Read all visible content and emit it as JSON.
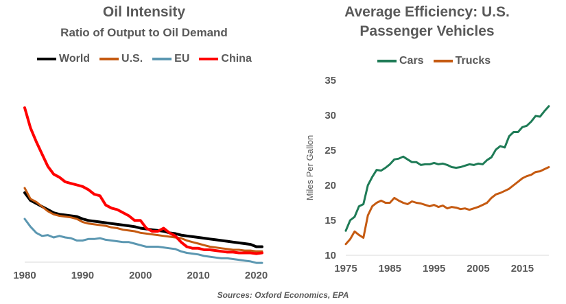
{
  "source": "Sources: Oxford Economics, EPA",
  "chart_data": [
    {
      "type": "line",
      "title": "Oil Intensity",
      "subtitle": "Ratio of Output to Oil Demand",
      "xlabel": "",
      "ylabel": "",
      "xlim": [
        1980,
        2021
      ],
      "ylim": [
        0,
        1
      ],
      "y_axis_visible": false,
      "grid": false,
      "legend_position": "top",
      "x_ticks": [
        1980,
        1990,
        2000,
        2010,
        2020
      ],
      "x": [
        1980,
        1981,
        1982,
        1983,
        1984,
        1985,
        1986,
        1987,
        1988,
        1989,
        1990,
        1991,
        1992,
        1993,
        1994,
        1995,
        1996,
        1997,
        1998,
        1999,
        2000,
        2001,
        2002,
        2003,
        2004,
        2005,
        2006,
        2007,
        2008,
        2009,
        2010,
        2011,
        2012,
        2013,
        2014,
        2015,
        2016,
        2017,
        2018,
        2019,
        2020,
        2021
      ],
      "series": [
        {
          "name": "World",
          "color": "#000000",
          "width": 4,
          "values": [
            0.45,
            0.4,
            0.38,
            0.36,
            0.34,
            0.32,
            0.31,
            0.305,
            0.3,
            0.295,
            0.28,
            0.27,
            0.265,
            0.26,
            0.255,
            0.25,
            0.245,
            0.24,
            0.235,
            0.23,
            0.22,
            0.215,
            0.21,
            0.205,
            0.2,
            0.19,
            0.185,
            0.175,
            0.17,
            0.165,
            0.16,
            0.155,
            0.15,
            0.145,
            0.14,
            0.135,
            0.13,
            0.125,
            0.12,
            0.115,
            0.1,
            0.1
          ]
        },
        {
          "name": "U.S.",
          "color": "#c55a11",
          "width": 3,
          "values": [
            0.48,
            0.41,
            0.39,
            0.36,
            0.33,
            0.31,
            0.3,
            0.295,
            0.29,
            0.28,
            0.26,
            0.25,
            0.245,
            0.24,
            0.235,
            0.225,
            0.22,
            0.21,
            0.205,
            0.2,
            0.19,
            0.185,
            0.18,
            0.175,
            0.17,
            0.165,
            0.16,
            0.155,
            0.14,
            0.13,
            0.12,
            0.11,
            0.1,
            0.095,
            0.09,
            0.085,
            0.08,
            0.08,
            0.075,
            0.075,
            0.07,
            0.07
          ]
        },
        {
          "name": "EU",
          "color": "#5b97b1",
          "width": 3,
          "values": [
            0.28,
            0.23,
            0.19,
            0.17,
            0.175,
            0.16,
            0.17,
            0.16,
            0.155,
            0.14,
            0.14,
            0.15,
            0.15,
            0.155,
            0.145,
            0.14,
            0.135,
            0.13,
            0.13,
            0.12,
            0.11,
            0.1,
            0.1,
            0.1,
            0.095,
            0.09,
            0.085,
            0.07,
            0.06,
            0.055,
            0.05,
            0.04,
            0.035,
            0.03,
            0.025,
            0.025,
            0.02,
            0.015,
            0.01,
            0.005,
            -0.005,
            -0.005
          ]
        },
        {
          "name": "China",
          "color": "#ff0000",
          "width": 4,
          "values": [
            1.0,
            0.87,
            0.78,
            0.7,
            0.62,
            0.57,
            0.55,
            0.52,
            0.51,
            0.5,
            0.49,
            0.47,
            0.44,
            0.43,
            0.37,
            0.35,
            0.34,
            0.32,
            0.3,
            0.27,
            0.27,
            0.22,
            0.2,
            0.2,
            0.22,
            0.19,
            0.17,
            0.13,
            0.1,
            0.09,
            0.09,
            0.08,
            0.08,
            0.075,
            0.07,
            0.065,
            0.065,
            0.06,
            0.06,
            0.06,
            0.055,
            0.06
          ]
        }
      ]
    },
    {
      "type": "line",
      "title": "Average Efficiency: U.S. Passenger Vehicles",
      "title_lines": [
        "Average Efficiency: U.S.",
        "Passenger Vehicles"
      ],
      "xlabel": "",
      "ylabel": "Miles Per Gallon",
      "xlim": [
        1975,
        2021
      ],
      "ylim": [
        10,
        35
      ],
      "grid": false,
      "legend_position": "top",
      "x_ticks": [
        1975,
        1985,
        1995,
        2005,
        2015
      ],
      "y_ticks": [
        10,
        15,
        20,
        25,
        30,
        35
      ],
      "x": [
        1975,
        1976,
        1977,
        1978,
        1979,
        1980,
        1981,
        1982,
        1983,
        1984,
        1985,
        1986,
        1987,
        1988,
        1989,
        1990,
        1991,
        1992,
        1993,
        1994,
        1995,
        1996,
        1997,
        1998,
        1999,
        2000,
        2001,
        2002,
        2003,
        2004,
        2005,
        2006,
        2007,
        2008,
        2009,
        2010,
        2011,
        2012,
        2013,
        2014,
        2015,
        2016,
        2017,
        2018,
        2019,
        2020,
        2021
      ],
      "series": [
        {
          "name": "Cars",
          "color": "#1e7b56",
          "width": 3,
          "values": [
            13.5,
            15.0,
            15.5,
            17.0,
            17.3,
            20.0,
            21.2,
            22.2,
            22.1,
            22.5,
            23.0,
            23.7,
            23.8,
            24.1,
            23.7,
            23.3,
            23.3,
            22.9,
            23.0,
            23.0,
            23.2,
            23.0,
            23.1,
            22.9,
            22.6,
            22.5,
            22.6,
            22.8,
            23.0,
            22.9,
            23.1,
            23.0,
            23.6,
            24.0,
            25.1,
            25.6,
            25.4,
            27.0,
            27.6,
            27.6,
            28.3,
            28.5,
            29.1,
            29.9,
            29.8,
            30.6,
            31.3
          ]
        },
        {
          "name": "Trucks",
          "color": "#c55a11",
          "width": 3,
          "values": [
            11.6,
            12.3,
            13.4,
            12.9,
            12.5,
            15.7,
            17.0,
            17.5,
            17.8,
            17.5,
            17.5,
            18.2,
            17.8,
            17.5,
            17.3,
            17.7,
            17.5,
            17.4,
            17.2,
            17.0,
            17.2,
            16.9,
            17.1,
            16.7,
            16.9,
            16.8,
            16.6,
            16.7,
            16.5,
            16.7,
            16.9,
            17.2,
            17.5,
            18.2,
            18.7,
            18.9,
            19.2,
            19.5,
            20.0,
            20.5,
            21.0,
            21.3,
            21.5,
            21.9,
            22.0,
            22.3,
            22.6
          ]
        }
      ]
    }
  ]
}
